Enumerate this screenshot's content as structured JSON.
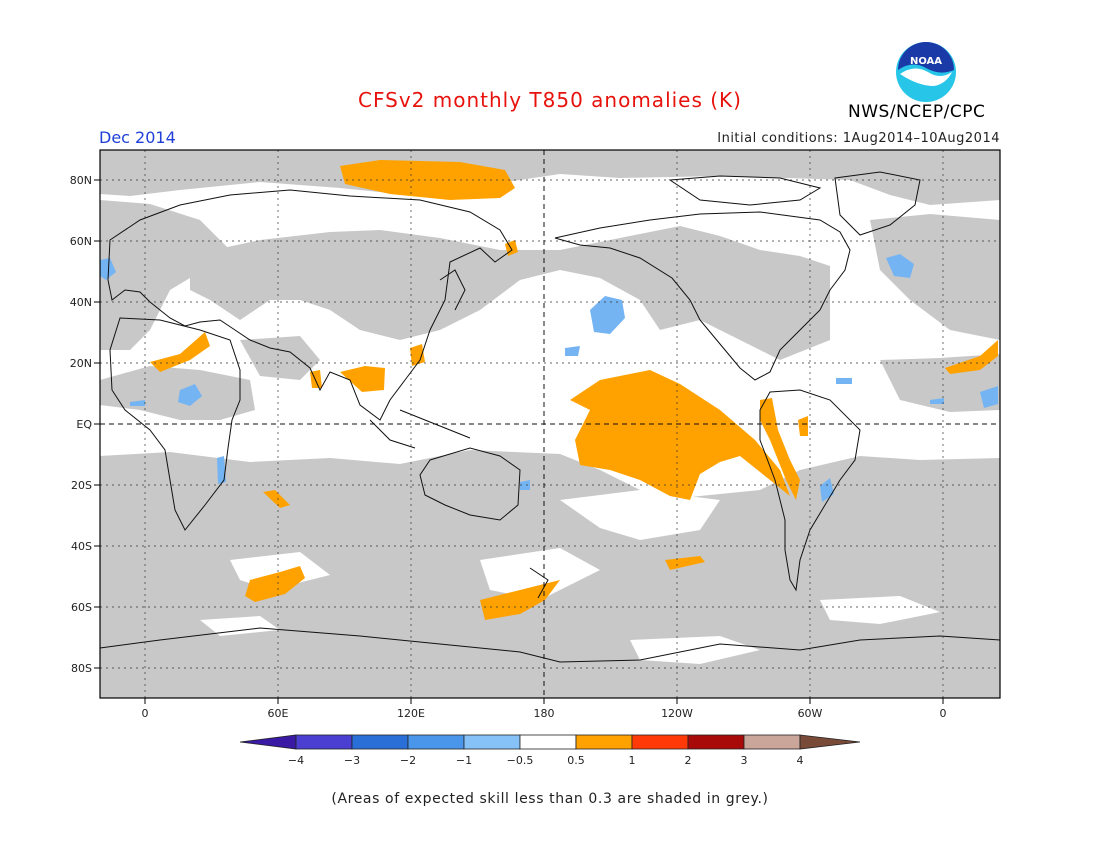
{
  "title": "CFSv2 monthly T850 anomalies (K)",
  "valid_month": "Dec 2014",
  "initial_conditions": "Initial conditions: 1Aug2014–10Aug2014",
  "agency": "NWS/NCEP/CPC",
  "logo": {
    "text": "NOAA",
    "colors": {
      "outer": "#27c6e8",
      "inner": "#1a3aa8",
      "bird": "#ffffff"
    }
  },
  "footnote": "(Areas of expected skill less than 0.3 are shaded in grey.)",
  "map": {
    "lon_ticks": [
      "0",
      "60E",
      "120E",
      "180",
      "120W",
      "60W",
      "0"
    ],
    "lat_ticks": [
      "80N",
      "60N",
      "40N",
      "20N",
      "EQ",
      "20S",
      "40S",
      "60S",
      "80S"
    ],
    "colors": {
      "low_skill": "#c8c8c8",
      "warm": "#ffa200",
      "cool": "#75b4f2",
      "coast": "#111111"
    }
  },
  "colorbar": {
    "labels": [
      "−4",
      "−3",
      "−2",
      "−1",
      "−0.5",
      "0.5",
      "1",
      "2",
      "3",
      "4"
    ],
    "colors": [
      "#3a1aa5",
      "#4a3fd0",
      "#2a6fd8",
      "#4a96ea",
      "#86c2f7",
      "#ffffff",
      "#ffa200",
      "#ff3a08",
      "#a80a0a",
      "#c9a59a",
      "#7a4a38"
    ]
  }
}
